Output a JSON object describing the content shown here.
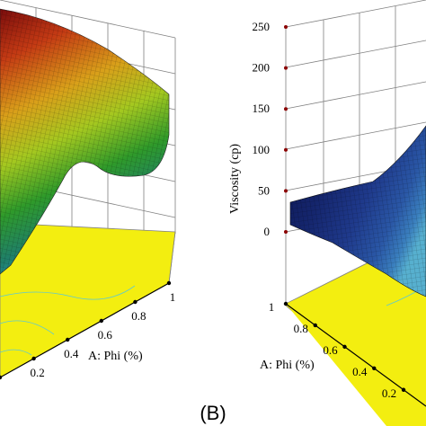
{
  "panel_label": "(B)",
  "colors": {
    "surface_left": [
      "#7a0c0c",
      "#c43a14",
      "#d9a01a",
      "#a4c820",
      "#2f9a2a",
      "#1f7f6a",
      "#2a9dc8"
    ],
    "surface_right": [
      "#0c1550",
      "#15266e",
      "#1f3a8c",
      "#2a57a6",
      "#3a7fbe",
      "#57b0cf",
      "#7fd8d8"
    ],
    "floor": "#f3ee10",
    "grid": "#808080",
    "tick_marker": "#8b0000"
  },
  "chart_data": [
    {
      "type": "surface",
      "title": "",
      "xlabel": "A: Phi (%)",
      "x_ticks": [
        "0.2",
        "0.4",
        "0.6",
        "0.8",
        "1"
      ],
      "xlim": [
        0,
        1
      ],
      "zlabel": "",
      "z_ticks": [],
      "grid": true,
      "colormap": "jet (red high, blue low)"
    },
    {
      "type": "surface",
      "title": "",
      "xlabel": "A: Phi (%)",
      "x_ticks": [
        "1",
        "0.8",
        "0.6",
        "0.4",
        "0.2"
      ],
      "xlim": [
        0,
        1
      ],
      "zlabel": "Viscosity (cp)",
      "z_ticks": [
        "0",
        "50",
        "100",
        "150",
        "200",
        "250"
      ],
      "zlim": [
        0,
        250
      ],
      "grid": true,
      "colormap": "blue-cyan (dark low, light high)"
    }
  ]
}
